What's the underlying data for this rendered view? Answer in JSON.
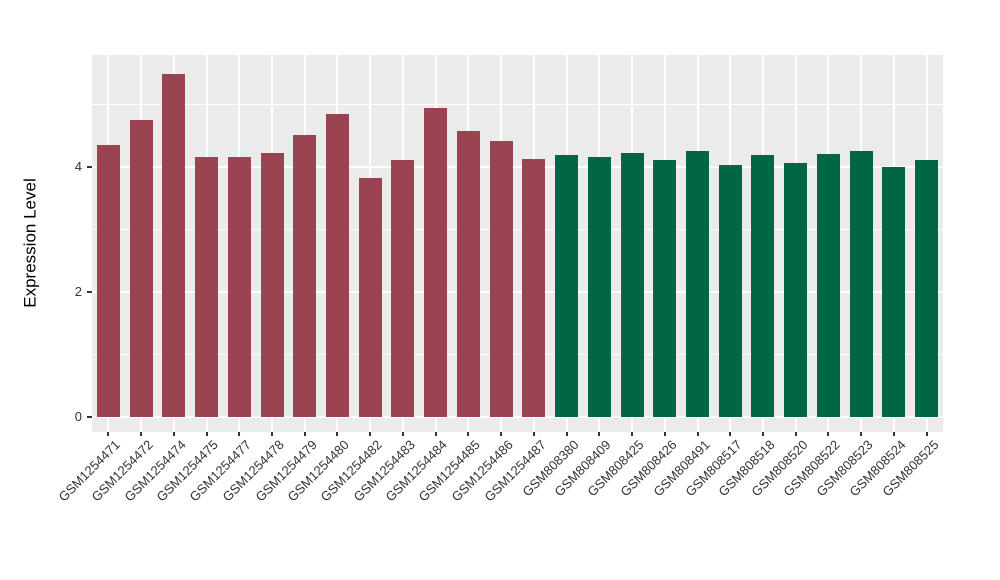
{
  "chart_data": {
    "type": "bar",
    "title": "",
    "xlabel": "",
    "ylabel": "Expression Level",
    "categories": [
      "GSM1254471",
      "GSM1254472",
      "GSM1254474",
      "GSM1254475",
      "GSM1254477",
      "GSM1254478",
      "GSM1254479",
      "GSM1254480",
      "GSM1254482",
      "GSM1254483",
      "GSM1254484",
      "GSM1254485",
      "GSM1254486",
      "GSM1254487",
      "GSM808380",
      "GSM808409",
      "GSM808425",
      "GSM808426",
      "GSM808491",
      "GSM808517",
      "GSM808518",
      "GSM808520",
      "GSM808522",
      "GSM808523",
      "GSM808524",
      "GSM808525"
    ],
    "values": [
      4.35,
      4.75,
      5.48,
      4.15,
      4.16,
      4.21,
      4.5,
      4.84,
      3.82,
      4.11,
      4.93,
      4.57,
      4.41,
      4.12,
      4.19,
      4.16,
      4.22,
      4.1,
      4.25,
      4.02,
      4.19,
      4.06,
      4.2,
      4.25,
      4.0,
      4.1
    ],
    "group_index": [
      0,
      0,
      0,
      0,
      0,
      0,
      0,
      0,
      0,
      0,
      0,
      0,
      0,
      0,
      1,
      1,
      1,
      1,
      1,
      1,
      1,
      1,
      1,
      1,
      1,
      1
    ],
    "group_colors": [
      "#9A4452",
      "#006646"
    ],
    "yticks": [
      0,
      2,
      4
    ],
    "yticks_minor": [
      1,
      3,
      5
    ],
    "ylim": [
      -0.25,
      5.78
    ],
    "grid": true,
    "legend": false,
    "panel_bg": "#EBEBEB",
    "grid_color": "#FFFFFF",
    "tick_color": "#333333",
    "axis_text_color": "#333333"
  }
}
